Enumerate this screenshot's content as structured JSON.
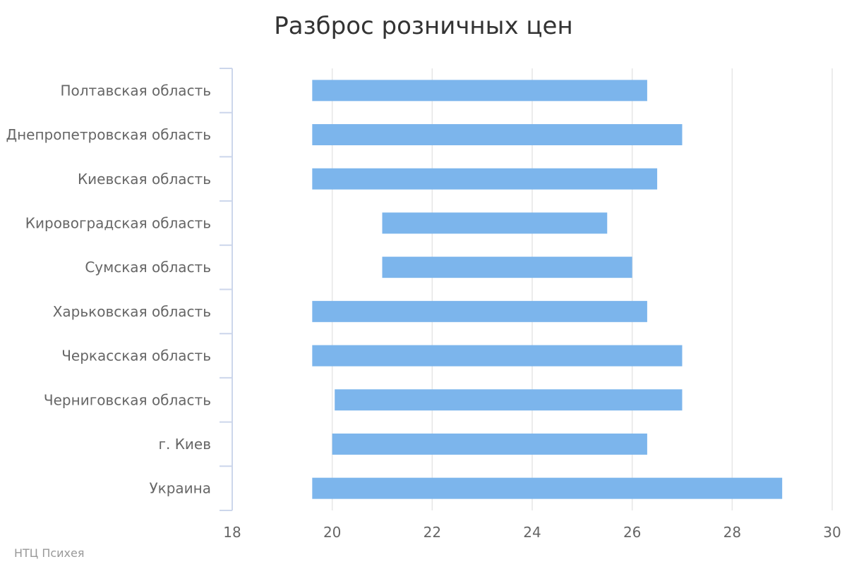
{
  "chart_data": {
    "type": "bar",
    "orientation": "horizontal",
    "title": "Разброс розничных цен",
    "credit": "НТЦ Психея",
    "categories": [
      "Полтавская область",
      "Днепропетровская область",
      "Киевская область",
      "Кировоградская область",
      "Сумская область",
      "Харьковская область",
      "Черкасская область",
      "Черниговская область",
      "г. Киев",
      "Украина"
    ],
    "ranges": [
      [
        19.6,
        26.3
      ],
      [
        19.6,
        27.0
      ],
      [
        19.6,
        26.5
      ],
      [
        21.0,
        25.5
      ],
      [
        21.0,
        26.0
      ],
      [
        19.6,
        26.3
      ],
      [
        19.6,
        27.0
      ],
      [
        20.05,
        27.0
      ],
      [
        20.0,
        26.3
      ],
      [
        19.6,
        29.0
      ]
    ],
    "xlim": [
      18,
      30
    ],
    "xticks": [
      18,
      20,
      22,
      24,
      26,
      28,
      30
    ],
    "grid": true,
    "colors": {
      "bar": "#7cb5ec",
      "grid": "#e6e6e6",
      "axis": "#ccd6eb",
      "title": "#333333",
      "label": "#666666",
      "credit": "#999999"
    }
  }
}
